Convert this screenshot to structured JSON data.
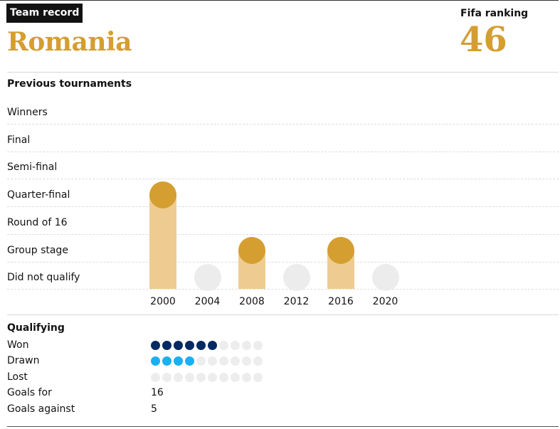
{
  "header": {
    "badge": "Team record",
    "country": "Romania",
    "fifa_label": "Fifa ranking",
    "fifa_value": "46"
  },
  "colors": {
    "accent": "#d59e31",
    "bar": "#eecc91",
    "not_qualified": "#ececec",
    "won": "#052962",
    "drawn": "#1ab0f0",
    "empty_pip": "#ededed"
  },
  "chart_data": {
    "type": "bar",
    "title": "Previous tournaments",
    "stages": [
      "Winners",
      "Final",
      "Semi-final",
      "Quarter-final",
      "Round of 16",
      "Group stage",
      "Did not qualify"
    ],
    "categories": [
      "2000",
      "2004",
      "2008",
      "2012",
      "2016",
      "2020"
    ],
    "values": [
      "Quarter-final",
      "Did not qualify",
      "Group stage",
      "Did not qualify",
      "Group stage",
      "Did not qualify"
    ]
  },
  "qualifying": {
    "title": "Qualifying",
    "total_pips": 10,
    "rows": [
      {
        "label": "Won",
        "count": 6,
        "kind": "won"
      },
      {
        "label": "Drawn",
        "count": 4,
        "kind": "drawn"
      },
      {
        "label": "Lost",
        "count": 0,
        "kind": "lost"
      }
    ],
    "goals_for_label": "Goals for",
    "goals_for": "16",
    "goals_against_label": "Goals against",
    "goals_against": "5"
  }
}
